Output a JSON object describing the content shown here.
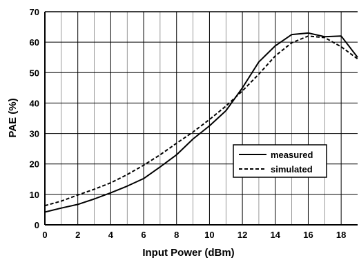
{
  "chart_data": {
    "type": "line",
    "xlabel": "Input Power (dBm)",
    "ylabel": "PAE (%)",
    "xlim": [
      0,
      19
    ],
    "ylim": [
      0,
      70
    ],
    "xticks": [
      0,
      2,
      4,
      6,
      8,
      10,
      12,
      14,
      16,
      18
    ],
    "yticks": [
      0,
      10,
      20,
      30,
      40,
      50,
      60,
      70
    ],
    "grid": true,
    "legend_position": "lower-right",
    "series": [
      {
        "name": "measured",
        "style": "solid",
        "color": "#000000",
        "x": [
          0,
          1,
          2,
          3,
          4,
          5,
          6,
          7,
          8,
          9,
          10,
          11,
          12,
          13,
          14,
          15,
          16,
          17,
          18,
          19
        ],
        "y": [
          4.2,
          5.5,
          6.7,
          8.5,
          10.5,
          12.7,
          15.2,
          19.0,
          23.0,
          28.2,
          32.5,
          37.5,
          45.0,
          53.5,
          58.8,
          62.5,
          63.0,
          61.8,
          62.0,
          55.0
        ]
      },
      {
        "name": "simulated",
        "style": "dashed",
        "color": "#000000",
        "x": [
          0,
          1,
          2,
          3,
          4,
          5,
          6,
          7,
          8,
          9,
          10,
          11,
          12,
          13,
          14,
          15,
          16,
          17,
          18,
          19
        ],
        "y": [
          6.3,
          7.8,
          9.8,
          11.7,
          13.8,
          16.5,
          19.6,
          23.0,
          26.8,
          30.5,
          34.6,
          39.0,
          44.0,
          49.5,
          55.5,
          59.8,
          62.0,
          61.5,
          58.5,
          54.5
        ]
      }
    ]
  }
}
